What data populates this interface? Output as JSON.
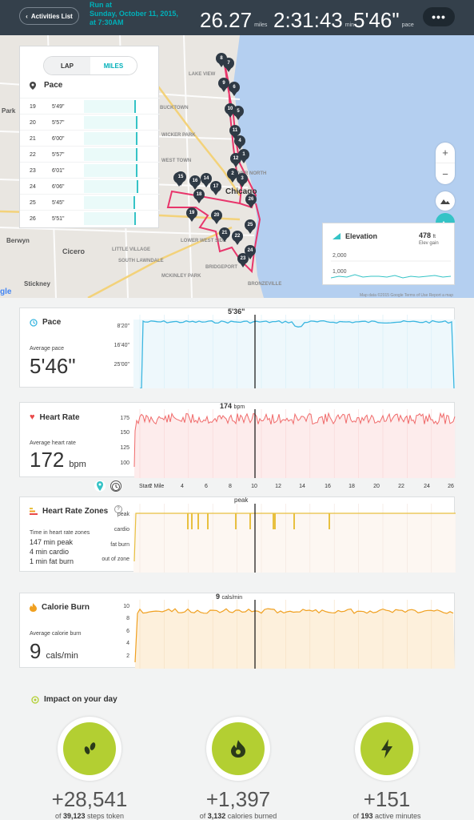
{
  "header": {
    "back_label": "Activities List",
    "run_title_1": "Run at",
    "run_title_2": "Sunday, October 11, 2015,",
    "run_title_3": "at 7:30AM",
    "distance": "26.27",
    "distance_unit": "miles",
    "duration": "2:31:43",
    "duration_unit": "min",
    "pace": "5'46\"",
    "pace_unit": "pace",
    "more_label": "•••"
  },
  "map": {
    "lap_panel": {
      "toggle": {
        "lap": "LAP",
        "miles": "MILES",
        "active": "miles"
      },
      "pace_heading": "Pace",
      "rows": [
        {
          "num": "19",
          "pace": "5'49\"",
          "fraction": 0.955
        },
        {
          "num": "20",
          "pace": "5'57\"",
          "fraction": 0.98
        },
        {
          "num": "21",
          "pace": "6'00\"",
          "fraction": 0.99
        },
        {
          "num": "22",
          "pace": "5'57\"",
          "fraction": 0.98
        },
        {
          "num": "23",
          "pace": "6'01\"",
          "fraction": 0.992
        },
        {
          "num": "24",
          "pace": "6'06\"",
          "fraction": 1.0
        },
        {
          "num": "25",
          "pace": "5'45\"",
          "fraction": 0.945
        },
        {
          "num": "26",
          "pace": "5'51\"",
          "fraction": 0.962
        }
      ]
    },
    "labels": {
      "lake_view": "LAKE VIEW",
      "bucktown": "BUCKTOWN",
      "wicker_park": "WICKER PARK",
      "west_town": "WEST TOWN",
      "chicago": "Chicago",
      "lower_west_side": "LOWER WEST SIDE",
      "little_village": "LITTLE VILLAGE",
      "south_lawndale": "SOUTH LAWNDALE",
      "mckinley_park": "MCKINLEY PARK",
      "bridgeport": "BRIDGEPORT",
      "bronzeville": "BRONZEVILLE",
      "river_north": "RIVER NORTH",
      "park": "Park",
      "berwyn": "Berwyn",
      "cicero": "Cicero",
      "stickney": "Stickney",
      "google": "gle",
      "credits": "Map data ©2015 Google    Terms of Use    Report a map"
    },
    "markers": [
      "8",
      "7",
      "9",
      "6",
      "10",
      "5",
      "11",
      "4",
      "1",
      "12",
      "3",
      "2",
      "13",
      "14",
      "15",
      "16",
      "17",
      "18",
      "26",
      "19",
      "20",
      "25",
      "21",
      "22",
      "24",
      "23"
    ],
    "zoom_in": "+",
    "zoom_out": "−",
    "elevation": {
      "title": "Elevation",
      "gain": "478",
      "gain_unit": "ft",
      "gain_label": "Elev gain",
      "tick_high": "2,000",
      "tick_low": "1,000"
    }
  },
  "pace_card": {
    "title": "Pace",
    "avg_label": "Average pace",
    "avg_value": "5'46\"",
    "cursor_value": "5'36\"",
    "y_ticks": [
      "8'20\"",
      "16'40\"",
      "25'00\""
    ]
  },
  "hr_card": {
    "title": "Heart Rate",
    "avg_label": "Average heart rate",
    "avg_value": "172",
    "avg_unit": "bpm",
    "cursor_value": "174",
    "cursor_unit": "bpm",
    "y_ticks": [
      "175",
      "150",
      "125",
      "100"
    ]
  },
  "x_axis": {
    "ticks": [
      "Start",
      "2 Mile",
      "4",
      "6",
      "8",
      "10",
      "12",
      "14",
      "16",
      "18",
      "20",
      "22",
      "24",
      "26"
    ]
  },
  "zones_card": {
    "title": "Heart Rate Zones",
    "help": "?",
    "desc": "Time in heart rate zones",
    "peak": "147 min peak",
    "cardio": "4 min cardio",
    "fatburn": "1 min fat burn",
    "cursor_value": "peak",
    "y_ticks": [
      "peak",
      "cardio",
      "fat burn",
      "out of zone"
    ]
  },
  "calorie_card": {
    "title": "Calorie Burn",
    "avg_label": "Average calorie burn",
    "avg_value": "9",
    "avg_unit": "cals/min",
    "cursor_value": "9",
    "cursor_unit": "cals/min",
    "y_ticks": [
      "10",
      "8",
      "6",
      "4",
      "2"
    ]
  },
  "impact": {
    "title": "Impact on your day",
    "steps": {
      "value": "+28,541",
      "of": "of",
      "total": "39,123",
      "label": "steps token"
    },
    "calories": {
      "value": "+1,397",
      "of": "of",
      "total": "3,132",
      "label": "calories burned"
    },
    "active": {
      "value": "+151",
      "of": "of",
      "total": "193",
      "label": "active minutes"
    }
  },
  "colors": {
    "header_bg": "#34404b",
    "accent_teal": "#00b0b9",
    "pace_line": "#3ab6e0",
    "hr_line": "#f06a6a",
    "zones_line": "#e8c040",
    "calorie_line": "#f0a020",
    "impact_green": "#b3cf32"
  }
}
